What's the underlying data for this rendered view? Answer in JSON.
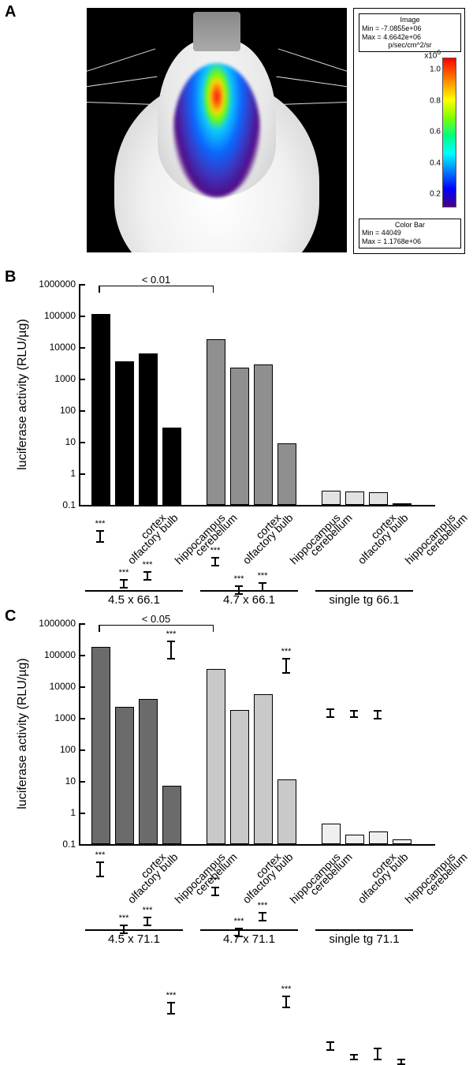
{
  "panelA": {
    "label": "A",
    "image_info_top": {
      "l1": "Image",
      "l2": "Min = -7.0855e+06",
      "l3": "Max = 4.6642e+06",
      "l4": "p/sec/cm^2/sr"
    },
    "image_info_bot": {
      "l1": "Color Bar",
      "l2": "Min = 44049",
      "l3": "Max = 1.1768e+06"
    },
    "colorbar_exp": "x10",
    "colorbar_exp_sup": "6",
    "ticks": [
      "1.0",
      "0.8",
      "0.6",
      "0.4",
      "0.2"
    ]
  },
  "chart_common": {
    "ylabel": "luciferase activity (RLU/µg)",
    "ymin_log": -1,
    "ymax_log": 6,
    "yticks": [
      {
        "log": -1,
        "label": "0.1"
      },
      {
        "log": 0,
        "label": "1"
      },
      {
        "log": 1,
        "label": "10"
      },
      {
        "log": 2,
        "label": "100"
      },
      {
        "log": 3,
        "label": "1000"
      },
      {
        "log": 4,
        "label": "10000"
      },
      {
        "log": 5,
        "label": "100000"
      },
      {
        "log": 6,
        "label": "1000000"
      }
    ],
    "xlabels": [
      "olfactory bulb",
      "cortex",
      "hippocampus",
      "cerebellum",
      "olfactory bulb",
      "cortex",
      "hippocampus",
      "cerebellum",
      "olfactory bulb",
      "cortex",
      "hippocampus",
      "cerebellum"
    ],
    "sig_marker": "***"
  },
  "panelB": {
    "label": "B",
    "bracket_p": "< 0.01",
    "groups": [
      "4.5 x 66.1",
      "4.7 x 66.1",
      "single tg 66.1"
    ],
    "colors": [
      "#000000",
      "#8f8f8f",
      "#e2e2e2"
    ],
    "values_log": [
      {
        "v": 5.0,
        "e": 0.2,
        "sig": true
      },
      {
        "v": 3.5,
        "e": 0.15,
        "sig": true
      },
      {
        "v": 3.75,
        "e": 0.15,
        "sig": true
      },
      {
        "v": 1.4,
        "e": 0.3,
        "sig": true
      },
      {
        "v": 4.2,
        "e": 0.15,
        "sig": true
      },
      {
        "v": 3.3,
        "e": 0.15,
        "sig": true
      },
      {
        "v": 3.4,
        "e": 0.15,
        "sig": true
      },
      {
        "v": 0.9,
        "e": 0.25,
        "sig": true
      },
      {
        "v": -0.6,
        "e": 0.15,
        "sig": false
      },
      {
        "v": -0.62,
        "e": 0.12,
        "sig": false
      },
      {
        "v": -0.65,
        "e": 0.15,
        "sig": false
      },
      {
        "v": -1.0,
        "e": 0.0,
        "sig": false
      }
    ]
  },
  "panelC": {
    "label": "C",
    "bracket_p": "< 0.05",
    "groups": [
      "4.5 x 71.1",
      "4.7 x 71.1",
      "single tg 71.1"
    ],
    "colors": [
      "#6b6b6b",
      "#c9c9c9",
      "#efefef"
    ],
    "values_log": [
      {
        "v": 5.2,
        "e": 0.25,
        "sig": true
      },
      {
        "v": 3.3,
        "e": 0.15,
        "sig": true
      },
      {
        "v": 3.55,
        "e": 0.15,
        "sig": true
      },
      {
        "v": 0.8,
        "e": 0.2,
        "sig": true
      },
      {
        "v": 4.5,
        "e": 0.15,
        "sig": true
      },
      {
        "v": 3.2,
        "e": 0.15,
        "sig": true
      },
      {
        "v": 3.7,
        "e": 0.15,
        "sig": true
      },
      {
        "v": 1.0,
        "e": 0.2,
        "sig": true
      },
      {
        "v": -0.4,
        "e": 0.15,
        "sig": false
      },
      {
        "v": -0.75,
        "e": 0.1,
        "sig": false
      },
      {
        "v": -0.65,
        "e": 0.2,
        "sig": false
      },
      {
        "v": -0.9,
        "e": 0.1,
        "sig": false
      }
    ]
  }
}
